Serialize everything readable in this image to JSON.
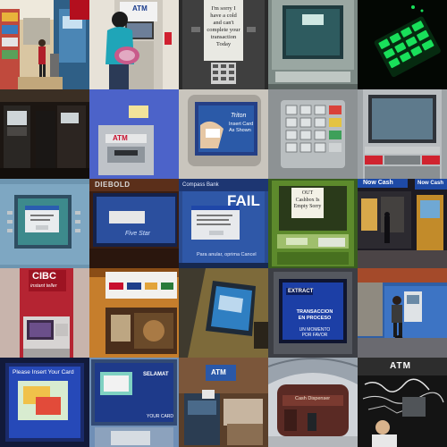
{
  "tiles": [
    {
      "id": "r1c1",
      "scene": "convenience-store-aisle-with-atm"
    },
    {
      "id": "r1c2",
      "scene": "woman-in-teal-jacket-using-atm",
      "texts": {
        "brand": "ATM"
      }
    },
    {
      "id": "r1c3",
      "scene": "handwritten-apology-note-on-atm",
      "texts": {
        "note": "I'm sorry I have a cold and can't complete your transaction Today"
      }
    },
    {
      "id": "r1c4",
      "scene": "atm-screen-closeup"
    },
    {
      "id": "r1c5",
      "scene": "green-lit-keypad-in-dark"
    },
    {
      "id": "r2c1",
      "scene": "dim-lobby-atms"
    },
    {
      "id": "r2c2",
      "scene": "blue-wall-atm-slot",
      "texts": {
        "brand": "ATM"
      }
    },
    {
      "id": "r2c3",
      "scene": "tritton-card-screen",
      "texts": {
        "brand": "Triton",
        "prompt": "Insert Card As Shown"
      }
    },
    {
      "id": "r2c4",
      "scene": "metal-keypad-closeup"
    },
    {
      "id": "r2c5",
      "scene": "atm-with-red-receipt-slot"
    },
    {
      "id": "r3c1",
      "scene": "atm-screen-windows-dialog"
    },
    {
      "id": "r3c2",
      "scene": "diebold-blue-screen",
      "texts": {
        "brand": "DIEBOLD",
        "screen": "Five Star"
      }
    },
    {
      "id": "r3c3",
      "scene": "compass-bank-fail-screen",
      "texts": {
        "bank": "Compass Bank",
        "fail": "FAIL",
        "bottom": "Para anular, oprima Cancel"
      }
    },
    {
      "id": "r3c4",
      "scene": "green-atm-with-out-of-order-note",
      "texts": {
        "note": "OUT Cashbox Is Empty Sorry"
      }
    },
    {
      "id": "r3c5",
      "scene": "nighttime-street-atms",
      "texts": {
        "sign": "Now Cash",
        "sign2": "Now Cash"
      }
    },
    {
      "id": "r4c1",
      "scene": "cibc-instant-teller",
      "texts": {
        "brand": "CIBC",
        "sub": "instant teller"
      }
    },
    {
      "id": "r4c2",
      "scene": "atm-with-star-card-logos"
    },
    {
      "id": "r4c3",
      "scene": "atm-screen-in-wood-frame"
    },
    {
      "id": "r4c4",
      "scene": "extract-transaction-in-process",
      "texts": {
        "brand": "EXTRACT",
        "line1": "TRANSACCION EN PROCESO",
        "line2": "UN MOMENTO POR FAVOR"
      }
    },
    {
      "id": "r4c5",
      "scene": "person-on-street-at-atm"
    },
    {
      "id": "r5c1",
      "scene": "please-insert-card-screen",
      "texts": {
        "prompt": "Please Insert Your Card"
      }
    },
    {
      "id": "r5c2",
      "scene": "wide-blue-atm-screen",
      "texts": {
        "line1": "SELAMAT",
        "line2": "YOUR CARD"
      }
    },
    {
      "id": "r5c3",
      "scene": "atm-box-in-cluttered-room",
      "texts": {
        "brand": "ATM"
      }
    },
    {
      "id": "r5c4",
      "scene": "arched-hall-atm-kiosk",
      "texts": {
        "sign": "Cash Dispenser"
      }
    },
    {
      "id": "r5c5",
      "scene": "man-at-graffiti-atm-wall",
      "texts": {
        "brand": "ATM"
      }
    }
  ],
  "colors": {
    "teal": "#1fa5b8",
    "atm_red": "#c8102e",
    "keypad_green": "#19e05a",
    "screen_blue": "#2b5aa8"
  }
}
